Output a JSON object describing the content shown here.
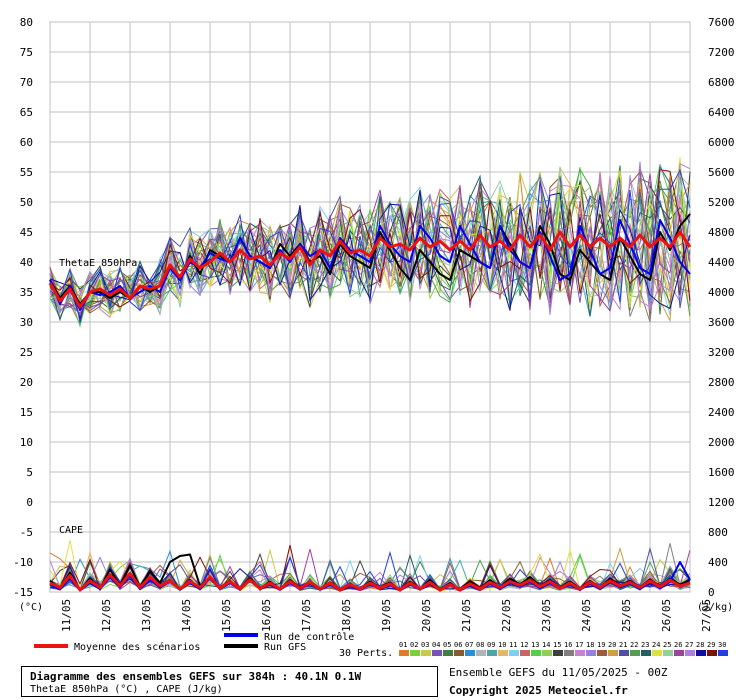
{
  "chart_data": {
    "type": "line",
    "title": "Diagramme des ensembles GEFS sur 384h : 40.1N 0.1W",
    "subtitle": "ThetaE 850hPa (°C) , CAPE (J/kg)",
    "left_axis": {
      "unit": "(°C)",
      "ylim": [
        -15,
        80
      ],
      "ticks": [
        -15,
        -10,
        -5,
        0,
        5,
        10,
        15,
        20,
        25,
        30,
        35,
        40,
        45,
        50,
        55,
        60,
        65,
        70,
        75,
        80
      ]
    },
    "right_axis": {
      "unit": "(J/kg)",
      "ylim": [
        0,
        7600
      ],
      "ticks": [
        0,
        400,
        800,
        1200,
        1600,
        2000,
        2400,
        2800,
        3200,
        3600,
        4000,
        4400,
        4800,
        5200,
        5600,
        6000,
        6400,
        6800,
        7200,
        7600
      ]
    },
    "x_ticks": [
      "11/05",
      "12/05",
      "13/05",
      "14/05",
      "15/05",
      "16/05",
      "17/05",
      "18/05",
      "19/05",
      "20/05",
      "21/05",
      "22/05",
      "23/05",
      "24/05",
      "25/05",
      "26/05",
      "27/05"
    ],
    "grid": true,
    "annotations": {
      "thetae": "ThetaE 850hPa",
      "cape": "CAPE"
    },
    "series": [
      {
        "name": "Moyenne des scénarios",
        "color": "#ee1111",
        "thetae": [
          36.5,
          33.5,
          35.5,
          32.5,
          35,
          35.5,
          34.5,
          35.5,
          34,
          36,
          35.5,
          36,
          39.5,
          37.5,
          40.5,
          39,
          40,
          41.5,
          40,
          42,
          40.5,
          41,
          39.5,
          41.5,
          40.5,
          42.5,
          39.5,
          42,
          41,
          43.5,
          41.5,
          42,
          41,
          44,
          42.5,
          43,
          42,
          44,
          42.5,
          43.5,
          42,
          43.5,
          42,
          44.5,
          42.5,
          43.5,
          42,
          44.5,
          42.5,
          44.5,
          42,
          45,
          42.5,
          44.5,
          42.5,
          44,
          42.5,
          44,
          42.5,
          44.5,
          42.5,
          44,
          42.5,
          45,
          42.5
        ],
        "cape": [
          120,
          60,
          220,
          30,
          150,
          60,
          230,
          80,
          250,
          60,
          200,
          80,
          150,
          40,
          140,
          60,
          200,
          50,
          140,
          40,
          160,
          50,
          120,
          40,
          140,
          50,
          130,
          40,
          120,
          30,
          100,
          40,
          120,
          50,
          110,
          30,
          120,
          40,
          130,
          30,
          100,
          30,
          110,
          40,
          130,
          60,
          140,
          90,
          160,
          70,
          140,
          50,
          120,
          40,
          130,
          60,
          150,
          80,
          130,
          60,
          150,
          70,
          160,
          80,
          120
        ]
      },
      {
        "name": "Run de contrôle",
        "color": "#0000ee",
        "thetae": [
          37,
          33,
          36,
          32,
          35,
          34.5,
          35,
          36,
          34,
          35,
          36,
          35,
          39,
          37,
          40,
          39,
          41.5,
          40.5,
          40,
          44,
          41,
          40,
          39,
          42,
          40,
          43,
          41,
          42,
          39,
          44,
          42,
          41,
          40,
          46,
          43,
          41,
          40,
          46,
          44,
          41,
          40,
          46,
          43,
          40,
          39,
          46,
          42,
          40,
          39,
          45,
          41,
          37,
          38,
          46,
          42,
          38,
          39,
          47,
          43,
          39,
          38,
          47,
          44,
          40,
          38
        ],
        "cape": [
          100,
          40,
          180,
          20,
          120,
          40,
          200,
          60,
          220,
          40,
          160,
          60,
          140,
          30,
          120,
          40,
          180,
          40,
          120,
          30,
          150,
          40,
          100,
          30,
          120,
          40,
          110,
          30,
          100,
          20,
          80,
          30,
          100,
          40,
          90,
          20,
          100,
          30,
          110,
          20,
          90,
          20,
          90,
          30,
          110,
          40,
          120,
          70,
          140,
          50,
          120,
          40,
          100,
          30,
          110,
          40,
          130,
          60,
          110,
          40,
          130,
          50,
          140,
          400,
          160
        ]
      },
      {
        "name": "Run GFS",
        "color": "#000000",
        "thetae": [
          37,
          34,
          36,
          33,
          35,
          35,
          34,
          35,
          34,
          36,
          35,
          36,
          39,
          37,
          41,
          38,
          42,
          41,
          40,
          44,
          41,
          40,
          39,
          43,
          41,
          43,
          40,
          41,
          38,
          43,
          41,
          40,
          39,
          45,
          42,
          39,
          37,
          42,
          40,
          38,
          37,
          42,
          41,
          40,
          39,
          46,
          43,
          40,
          39,
          46,
          43,
          38,
          37,
          42,
          40,
          38,
          37,
          44,
          41,
          38,
          37,
          45,
          42,
          46,
          48
        ],
        "cape": [
          150,
          50,
          260,
          30,
          180,
          50,
          300,
          80,
          350,
          70,
          280,
          120,
          400,
          480,
          500,
          80,
          200,
          60,
          150,
          30,
          180,
          50,
          140,
          40,
          160,
          60,
          140,
          50,
          130,
          40,
          110,
          40,
          140,
          50,
          130,
          30,
          140,
          40,
          160,
          40,
          120,
          30,
          140,
          50,
          160,
          60,
          180,
          100,
          200,
          80,
          160,
          60,
          140,
          50,
          150,
          60,
          180,
          90,
          150,
          70,
          170,
          80,
          180,
          100,
          160
        ]
      }
    ]
  },
  "legend": {
    "mean_label": "Moyenne des scénarios",
    "control_label": "Run de contrôle",
    "gfs_label": "Run GFS",
    "perts_label": "30 Perts.",
    "pert_numbers": [
      "01",
      "02",
      "03",
      "04",
      "05",
      "06",
      "07",
      "08",
      "09",
      "10",
      "11",
      "12",
      "13",
      "14",
      "15",
      "16",
      "17",
      "18",
      "19",
      "20",
      "21",
      "22",
      "23",
      "24",
      "25",
      "26",
      "27",
      "28",
      "29",
      "30"
    ],
    "pert_colors": [
      "#e07b2a",
      "#7ccf3f",
      "#c9c94a",
      "#7a4fbf",
      "#3f7f3f",
      "#8a5a2a",
      "#2b8fd6",
      "#b3b3b3",
      "#43a9a9",
      "#e8b860",
      "#7fd0f0",
      "#c86464",
      "#4fd04f",
      "#8fd04f",
      "#3f3f3f",
      "#7f7f7f",
      "#d07fd0",
      "#9a7fe0",
      "#a05a3a",
      "#d0a040",
      "#5050a0",
      "#50a050",
      "#206060",
      "#e0e040",
      "#90d0a0",
      "#a040a0",
      "#b080e0",
      "#1010a0",
      "#801010",
      "#2040e0"
    ]
  },
  "footer": {
    "title": "Diagramme des ensembles GEFS sur 384h : 40.1N 0.1W",
    "subtitle": "ThetaE 850hPa (°C) , CAPE (J/kg)",
    "run_info": "Ensemble GEFS du 11/05/2025 - 00Z",
    "copyright": "Copyright 2025 Meteociel.fr"
  }
}
